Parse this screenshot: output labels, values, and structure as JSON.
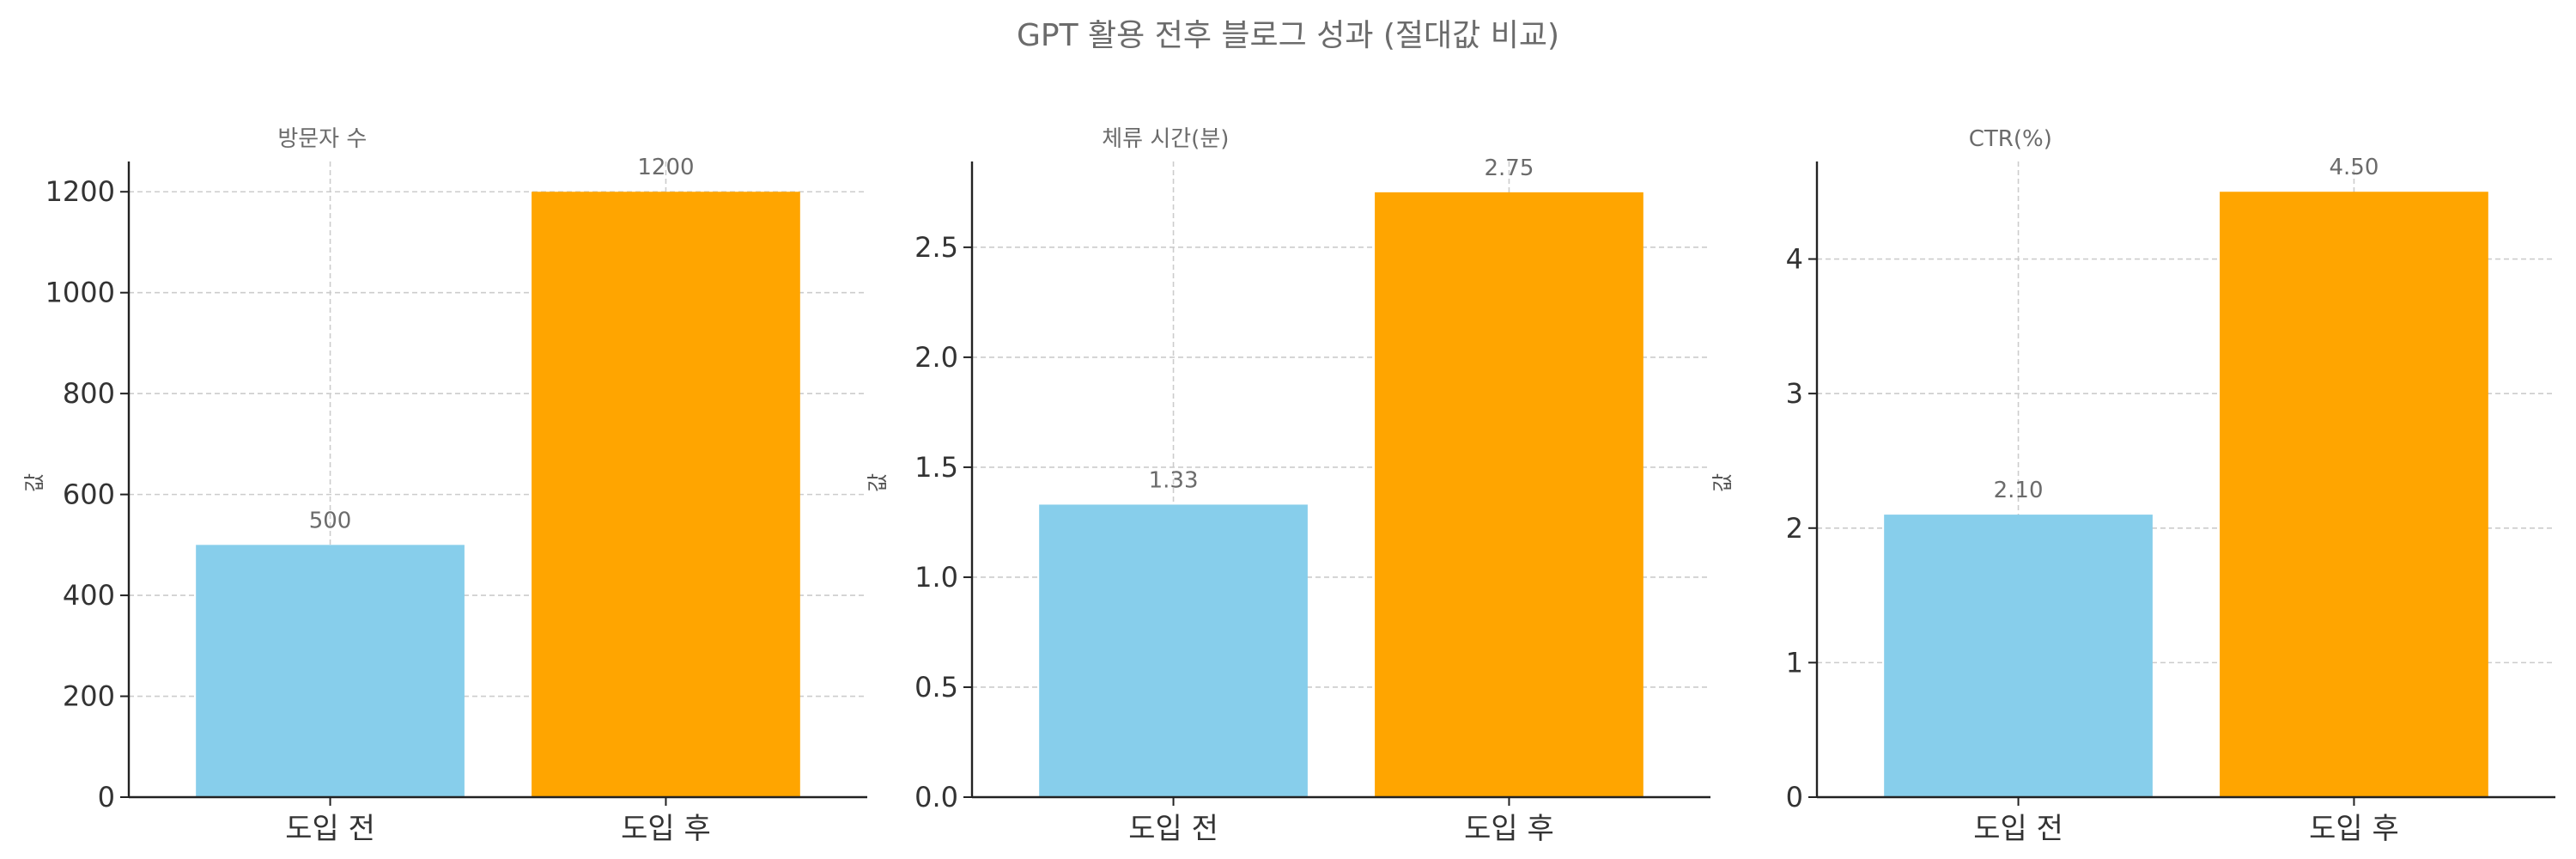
{
  "suptitle": "GPT 활용 전후 블로그 성과 (절대값 비교)",
  "colors": {
    "before": "#87ceeb",
    "after": "#ffa500",
    "grid": "#cccccc",
    "axis": "#222222"
  },
  "chart_data": [
    {
      "type": "bar",
      "title": "방문자 수",
      "ylabel": "값",
      "categories": [
        "도입 전",
        "도입 후"
      ],
      "values": [
        500,
        1200
      ],
      "value_labels": [
        "500",
        "1200"
      ],
      "ylim": [
        0,
        1260
      ],
      "yticks": [
        0,
        200,
        400,
        600,
        800,
        1000,
        1200
      ],
      "ytick_labels": [
        "0",
        "200",
        "400",
        "600",
        "800",
        "1000",
        "1200"
      ],
      "grid": true
    },
    {
      "type": "bar",
      "title": "체류 시간(분)",
      "ylabel": "값",
      "categories": [
        "도입 전",
        "도입 후"
      ],
      "values": [
        1.33,
        2.75
      ],
      "value_labels": [
        "1.33",
        "2.75"
      ],
      "ylim": [
        0,
        2.89
      ],
      "yticks": [
        0,
        0.5,
        1.0,
        1.5,
        2.0,
        2.5
      ],
      "ytick_labels": [
        "0.0",
        "0.5",
        "1.0",
        "1.5",
        "2.0",
        "2.5"
      ],
      "grid": true
    },
    {
      "type": "bar",
      "title": "CTR(%)",
      "ylabel": "값",
      "categories": [
        "도입 전",
        "도입 후"
      ],
      "values": [
        2.1,
        4.5
      ],
      "value_labels": [
        "2.10",
        "4.50"
      ],
      "ylim": [
        0,
        4.725
      ],
      "yticks": [
        0,
        1,
        2,
        3,
        4
      ],
      "ytick_labels": [
        "0",
        "1",
        "2",
        "3",
        "4"
      ],
      "grid": true
    }
  ]
}
